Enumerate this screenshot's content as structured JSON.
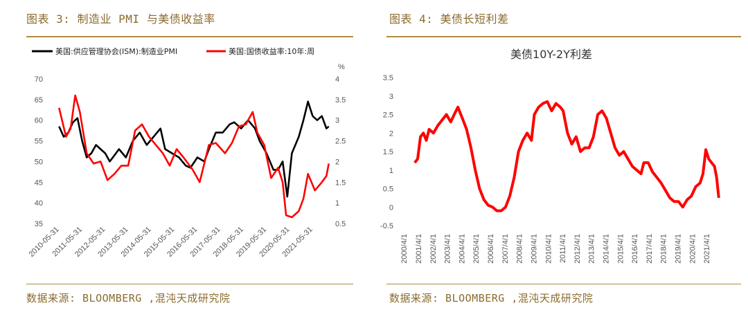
{
  "left": {
    "title": "图表 3: 制造业 PMI 与美债收益率",
    "source": "数据来源: BLOOMBERG ,混沌天成研究院",
    "legend": [
      {
        "label": "美国:供应管理协会(ISM):制造业PMI",
        "color": "#000000"
      },
      {
        "label": "美国:国债收益率:10年:周",
        "color": "#ff0000"
      }
    ],
    "right_axis_unit": "%"
  },
  "right": {
    "title": "图表 4: 美债长短利差",
    "source": "数据来源: BLOOMBERG ,混沌天成研究院",
    "chart_title": "美债10Y-2Y利差"
  },
  "chart_data": [
    {
      "type": "line",
      "x_labels": [
        "2010-05-31",
        "2011-05-31",
        "2012-05-31",
        "2013-05-31",
        "2014-05-31",
        "2015-05-31",
        "2016-05-31",
        "2017-05-31",
        "2018-05-31",
        "2019-05-31",
        "2020-05-31",
        "2021-05-31"
      ],
      "y_left_ticks": [
        "70",
        "65",
        "60",
        "55",
        "50",
        "45",
        "40",
        "35"
      ],
      "y_right_ticks": [
        "4",
        "3.5",
        "3",
        "2.5",
        "2",
        "1.5",
        "1",
        "0.5"
      ],
      "ylim_left": [
        35,
        70
      ],
      "ylim_right": [
        0.5,
        4
      ],
      "series": [
        {
          "name": "美国:供应管理协会(ISM):制造业PMI",
          "color": "#000000",
          "axis": "left",
          "points": [
            [
              2010.4,
              58.5
            ],
            [
              2010.6,
              56
            ],
            [
              2010.8,
              57
            ],
            [
              2011.0,
              59.5
            ],
            [
              2011.2,
              60.5
            ],
            [
              2011.4,
              55
            ],
            [
              2011.6,
              51
            ],
            [
              2011.8,
              52
            ],
            [
              2012.0,
              54
            ],
            [
              2012.2,
              53
            ],
            [
              2012.4,
              52
            ],
            [
              2012.6,
              50
            ],
            [
              2012.8,
              51.5
            ],
            [
              2013.0,
              53
            ],
            [
              2013.3,
              51
            ],
            [
              2013.6,
              55
            ],
            [
              2013.9,
              57
            ],
            [
              2014.2,
              54
            ],
            [
              2014.5,
              56
            ],
            [
              2014.8,
              58
            ],
            [
              2015.0,
              53
            ],
            [
              2015.3,
              52
            ],
            [
              2015.6,
              51
            ],
            [
              2015.9,
              49
            ],
            [
              2016.1,
              48.5
            ],
            [
              2016.4,
              51
            ],
            [
              2016.7,
              50
            ],
            [
              2016.9,
              53
            ],
            [
              2017.2,
              57
            ],
            [
              2017.5,
              57
            ],
            [
              2017.8,
              59
            ],
            [
              2018.0,
              59.5
            ],
            [
              2018.3,
              58
            ],
            [
              2018.6,
              60
            ],
            [
              2018.9,
              58
            ],
            [
              2019.1,
              55
            ],
            [
              2019.4,
              52
            ],
            [
              2019.7,
              48
            ],
            [
              2019.9,
              48
            ],
            [
              2020.1,
              50
            ],
            [
              2020.3,
              41.5
            ],
            [
              2020.5,
              52
            ],
            [
              2020.8,
              56
            ],
            [
              2021.0,
              60
            ],
            [
              2021.2,
              64.5
            ],
            [
              2021.4,
              61
            ],
            [
              2021.6,
              60
            ],
            [
              2021.8,
              61
            ],
            [
              2022.0,
              58
            ],
            [
              2022.1,
              58.5
            ]
          ]
        },
        {
          "name": "美国:国债收益率:10年:周",
          "color": "#ff0000",
          "axis": "right",
          "points": [
            [
              2010.4,
              3.3
            ],
            [
              2010.7,
              2.6
            ],
            [
              2010.9,
              2.8
            ],
            [
              2011.1,
              3.6
            ],
            [
              2011.3,
              3.2
            ],
            [
              2011.6,
              2.2
            ],
            [
              2011.9,
              1.95
            ],
            [
              2012.2,
              2.0
            ],
            [
              2012.5,
              1.55
            ],
            [
              2012.8,
              1.7
            ],
            [
              2013.1,
              1.9
            ],
            [
              2013.4,
              1.9
            ],
            [
              2013.7,
              2.75
            ],
            [
              2014.0,
              2.9
            ],
            [
              2014.3,
              2.6
            ],
            [
              2014.6,
              2.4
            ],
            [
              2014.9,
              2.2
            ],
            [
              2015.2,
              1.9
            ],
            [
              2015.5,
              2.3
            ],
            [
              2015.8,
              2.1
            ],
            [
              2016.2,
              1.8
            ],
            [
              2016.5,
              1.5
            ],
            [
              2016.9,
              2.4
            ],
            [
              2017.2,
              2.45
            ],
            [
              2017.6,
              2.2
            ],
            [
              2017.9,
              2.45
            ],
            [
              2018.2,
              2.85
            ],
            [
              2018.5,
              2.9
            ],
            [
              2018.8,
              3.2
            ],
            [
              2019.0,
              2.7
            ],
            [
              2019.3,
              2.4
            ],
            [
              2019.6,
              1.6
            ],
            [
              2019.9,
              1.85
            ],
            [
              2020.1,
              1.5
            ],
            [
              2020.25,
              0.7
            ],
            [
              2020.5,
              0.65
            ],
            [
              2020.8,
              0.8
            ],
            [
              2021.0,
              1.1
            ],
            [
              2021.2,
              1.7
            ],
            [
              2021.5,
              1.3
            ],
            [
              2021.8,
              1.5
            ],
            [
              2022.0,
              1.65
            ],
            [
              2022.1,
              1.95
            ]
          ]
        }
      ]
    },
    {
      "type": "line",
      "title": "美债10Y-2Y利差",
      "x_labels": [
        "2000/4/1",
        "2001/4/1",
        "2002/4/1",
        "2003/4/1",
        "2004/4/1",
        "2005/4/1",
        "2006/4/1",
        "2007/4/1",
        "2008/4/1",
        "2009/4/1",
        "2010/4/1",
        "2011/4/1",
        "2012/4/1",
        "2013/4/1",
        "2014/4/1",
        "2015/4/1",
        "2016/4/1",
        "2017/4/1",
        "2018/4/1",
        "2019/4/1",
        "2020/4/1",
        "2021/4/1"
      ],
      "y_ticks": [
        "3.5",
        "3",
        "2.5",
        "2",
        "1.5",
        "1",
        "0.5",
        "0",
        "-0.5"
      ],
      "ylim": [
        -0.5,
        3.5
      ],
      "series": [
        {
          "color": "#ff0000",
          "points": [
            [
              2001.0,
              1.2
            ],
            [
              2001.2,
              1.3
            ],
            [
              2001.4,
              1.9
            ],
            [
              2001.6,
              2.0
            ],
            [
              2001.8,
              1.8
            ],
            [
              2002.0,
              2.1
            ],
            [
              2002.3,
              2.0
            ],
            [
              2002.6,
              2.2
            ],
            [
              2002.9,
              2.35
            ],
            [
              2003.2,
              2.5
            ],
            [
              2003.5,
              2.3
            ],
            [
              2003.8,
              2.55
            ],
            [
              2004.0,
              2.7
            ],
            [
              2004.3,
              2.4
            ],
            [
              2004.6,
              2.1
            ],
            [
              2004.9,
              1.6
            ],
            [
              2005.2,
              1.0
            ],
            [
              2005.5,
              0.5
            ],
            [
              2005.8,
              0.2
            ],
            [
              2006.1,
              0.05
            ],
            [
              2006.4,
              0.0
            ],
            [
              2006.7,
              -0.1
            ],
            [
              2007.0,
              -0.1
            ],
            [
              2007.3,
              0.0
            ],
            [
              2007.6,
              0.3
            ],
            [
              2007.9,
              0.8
            ],
            [
              2008.2,
              1.5
            ],
            [
              2008.5,
              1.8
            ],
            [
              2008.8,
              2.0
            ],
            [
              2009.1,
              1.8
            ],
            [
              2009.3,
              2.5
            ],
            [
              2009.6,
              2.7
            ],
            [
              2009.9,
              2.8
            ],
            [
              2010.2,
              2.85
            ],
            [
              2010.5,
              2.6
            ],
            [
              2010.8,
              2.8
            ],
            [
              2011.1,
              2.7
            ],
            [
              2011.3,
              2.6
            ],
            [
              2011.6,
              2.0
            ],
            [
              2011.9,
              1.7
            ],
            [
              2012.2,
              1.9
            ],
            [
              2012.5,
              1.5
            ],
            [
              2012.8,
              1.6
            ],
            [
              2013.1,
              1.6
            ],
            [
              2013.4,
              1.9
            ],
            [
              2013.7,
              2.5
            ],
            [
              2014.0,
              2.6
            ],
            [
              2014.3,
              2.4
            ],
            [
              2014.6,
              2.0
            ],
            [
              2014.9,
              1.6
            ],
            [
              2015.2,
              1.4
            ],
            [
              2015.5,
              1.5
            ],
            [
              2015.8,
              1.3
            ],
            [
              2016.1,
              1.1
            ],
            [
              2016.4,
              1.0
            ],
            [
              2016.7,
              0.9
            ],
            [
              2016.9,
              1.2
            ],
            [
              2017.2,
              1.2
            ],
            [
              2017.5,
              0.95
            ],
            [
              2017.8,
              0.8
            ],
            [
              2018.1,
              0.65
            ],
            [
              2018.4,
              0.45
            ],
            [
              2018.7,
              0.25
            ],
            [
              2019.0,
              0.15
            ],
            [
              2019.3,
              0.15
            ],
            [
              2019.6,
              0.0
            ],
            [
              2019.9,
              0.2
            ],
            [
              2020.2,
              0.3
            ],
            [
              2020.5,
              0.55
            ],
            [
              2020.8,
              0.65
            ],
            [
              2021.0,
              0.9
            ],
            [
              2021.2,
              1.55
            ],
            [
              2021.4,
              1.3
            ],
            [
              2021.6,
              1.2
            ],
            [
              2021.8,
              1.1
            ],
            [
              2021.95,
              0.8
            ],
            [
              2022.1,
              0.25
            ]
          ]
        }
      ]
    }
  ]
}
